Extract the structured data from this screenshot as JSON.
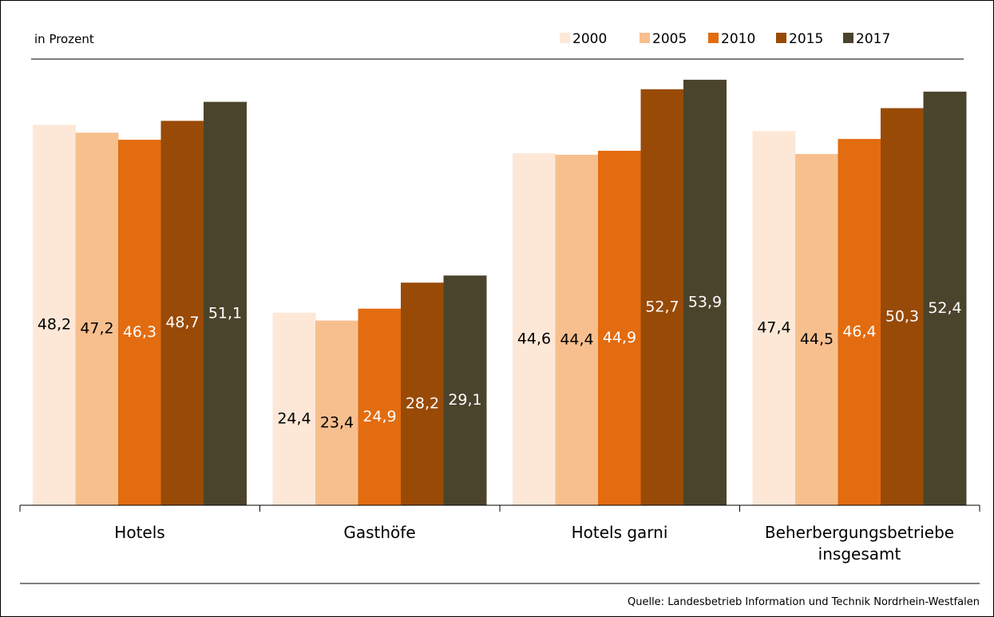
{
  "unit_label": "in Prozent",
  "source": "Quelle: Landesbetrieb Information und Technik Nordrhein-Westfalen",
  "chart_data": {
    "type": "bar",
    "title": "",
    "ylabel": "in Prozent",
    "legend_position": "top-right",
    "grid": false,
    "ylim": [
      0,
      55
    ],
    "categories": [
      [
        "Hotels"
      ],
      [
        "Gasthöfe"
      ],
      [
        "Hotels garni"
      ],
      [
        "Beherbergungsbetriebe",
        "insgesamt"
      ]
    ],
    "series": [
      {
        "name": "2000",
        "color": "#fde8d8",
        "label_color": "#000000",
        "values": [
          48.2,
          24.4,
          44.6,
          47.4
        ],
        "labels": [
          "48,2",
          "24,4",
          "44,6",
          "47,4"
        ]
      },
      {
        "name": "2005",
        "color": "#f8bf8e",
        "label_color": "#000000",
        "values": [
          47.2,
          23.4,
          44.4,
          44.5
        ],
        "labels": [
          "47,2",
          "23,4",
          "44,4",
          "44,5"
        ]
      },
      {
        "name": "2010",
        "color": "#e36c10",
        "label_color": "#ffffff",
        "values": [
          46.3,
          24.9,
          44.9,
          46.4
        ],
        "labels": [
          "46,3",
          "24,9",
          "44,9",
          "46,4"
        ]
      },
      {
        "name": "2015",
        "color": "#994a07",
        "label_color": "#ffffff",
        "values": [
          48.7,
          28.2,
          52.7,
          50.3
        ],
        "labels": [
          "48,7",
          "28,2",
          "52,7",
          "50,3"
        ]
      },
      {
        "name": "2017",
        "color": "#4b442c",
        "label_color": "#ffffff",
        "values": [
          51.1,
          29.1,
          53.9,
          52.4
        ],
        "labels": [
          "51,1",
          "29,1",
          "53,9",
          "52,4"
        ]
      }
    ]
  }
}
